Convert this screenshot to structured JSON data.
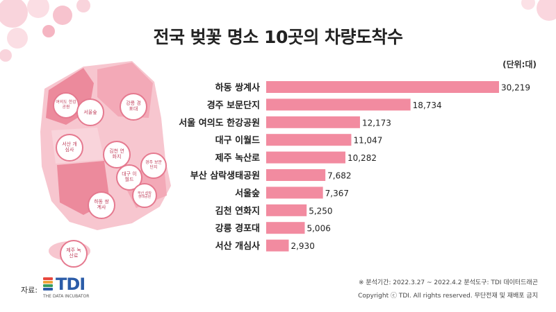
{
  "title": "전국 벚꽃 명소 10곳의 차량도착수",
  "unit": "(단위:대)",
  "footer": {
    "line1": "※ 분석기간: 2022.3.27 ~ 2022.4.2  분석도구: TDI 데이터드래곤",
    "line2": "Copyright ⓒ TDI. All rights reserved. 무단전재 및 재배포 금지"
  },
  "source_label": "자료:",
  "logo": {
    "name": "TDI",
    "tagline": "THE DATA INCUBATOR"
  },
  "map_labels": [
    "여의도 한강공원",
    "서울숲",
    "강릉 경포대",
    "서산 개심사",
    "김천 연화지",
    "경주 보문단지",
    "대구 이월드",
    "부산 삼락생태공원",
    "하동 쌍계사",
    "제주 녹산로"
  ],
  "colors": {
    "bar": "#f28ba0",
    "map_dark": "#ec8a9c",
    "map_light": "#f7c6cf",
    "logo_blue": "#2b5ca8"
  },
  "chart_data": {
    "type": "bar",
    "orientation": "horizontal",
    "title": "전국 벚꽃 명소 10곳의 차량도착수",
    "unit": "(단위:대)",
    "categories": [
      "하동 쌍계사",
      "경주 보문단지",
      "서울 여의도 한강공원",
      "대구 이월드",
      "제주 녹산로",
      "부산 삼락생태공원",
      "서울숲",
      "김천 연화지",
      "강릉 경포대",
      "서산 개심사"
    ],
    "values": [
      30219,
      18734,
      12173,
      11047,
      10282,
      7682,
      7367,
      5250,
      5006,
      2930
    ],
    "value_labels": [
      "30,219",
      "18,734",
      "12,173",
      "11,047",
      "10,282",
      "7,682",
      "7,367",
      "5,250",
      "5,006",
      "2,930"
    ],
    "grid": false
  }
}
